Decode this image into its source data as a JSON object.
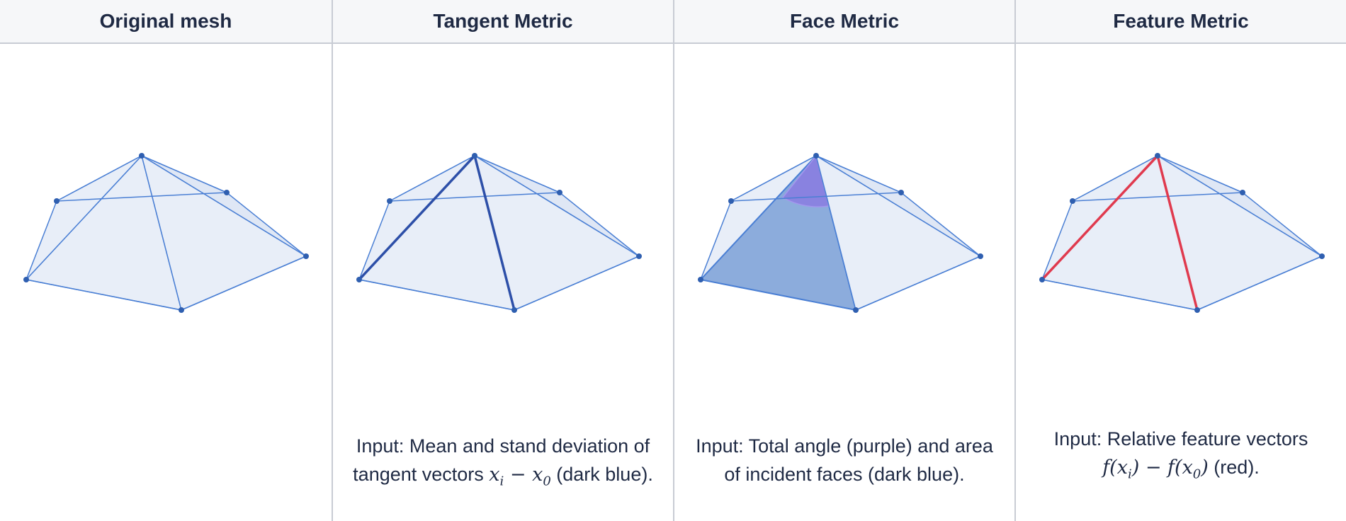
{
  "columns": [
    {
      "header": "Original mesh",
      "caption": null
    },
    {
      "header": "Tangent Metric",
      "caption": {
        "pre": "Input: Mean and stand deviation of tangent vectors ",
        "math": "x_i − x_0",
        "post": " (dark blue)."
      }
    },
    {
      "header": "Face Metric",
      "caption": {
        "pre": "Input: Total angle (purple) and area of incident faces (dark blue).",
        "math": "",
        "post": ""
      }
    },
    {
      "header": "Feature Metric",
      "caption": {
        "pre": "Input: Relative feature vectors ",
        "math": "f(x_i) − f(x_0)",
        "post": " (red)."
      }
    }
  ],
  "colors": {
    "face_fill": "#e8eef8",
    "far_face_fill": "#d6e0f2",
    "edge": "#4a7fd4",
    "vertex": "#2f5fb0",
    "highlight_dark_blue": "#2d4fa8",
    "face_dark_blue": "#7fa3d8",
    "angle_purple": "#8a7be0",
    "feature_red": "#e03a4e"
  }
}
